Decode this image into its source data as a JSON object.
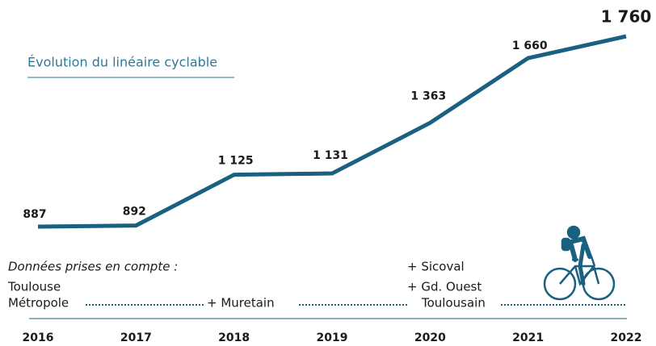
{
  "chart_data": {
    "type": "line",
    "title": "Évolution du linéaire cyclable",
    "categories": [
      "2016",
      "2017",
      "2018",
      "2019",
      "2020",
      "2021",
      "2022"
    ],
    "values": [
      887,
      892,
      1125,
      1131,
      1363,
      1660,
      1760
    ],
    "value_labels": [
      "887",
      "892",
      "1 125",
      "1 131",
      "1 363",
      "1 660",
      "1 760"
    ],
    "color": "#1a6080",
    "notes": [
      "Données prises en compte :",
      "Toulouse",
      "Métropole",
      "+ Muretain",
      "+ Sicoval",
      "+ Gd. Ouest",
      "Toulousain"
    ]
  }
}
